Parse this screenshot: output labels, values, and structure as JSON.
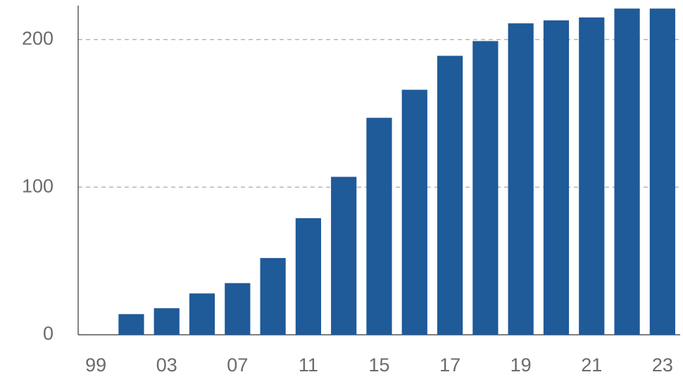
{
  "chart_data": {
    "type": "bar",
    "categories": [
      "99",
      null,
      "03",
      null,
      "07",
      null,
      "11",
      null,
      "15",
      null,
      "17",
      null,
      "19",
      null,
      "21",
      null,
      "23"
    ],
    "values": [
      0,
      14,
      18,
      28,
      35,
      52,
      79,
      107,
      147,
      166,
      189,
      199,
      211,
      213,
      215,
      221,
      221
    ],
    "color": "#1f5a99",
    "ylim": [
      0,
      223
    ],
    "yticks": [
      0,
      100,
      200
    ],
    "grid": true
  }
}
